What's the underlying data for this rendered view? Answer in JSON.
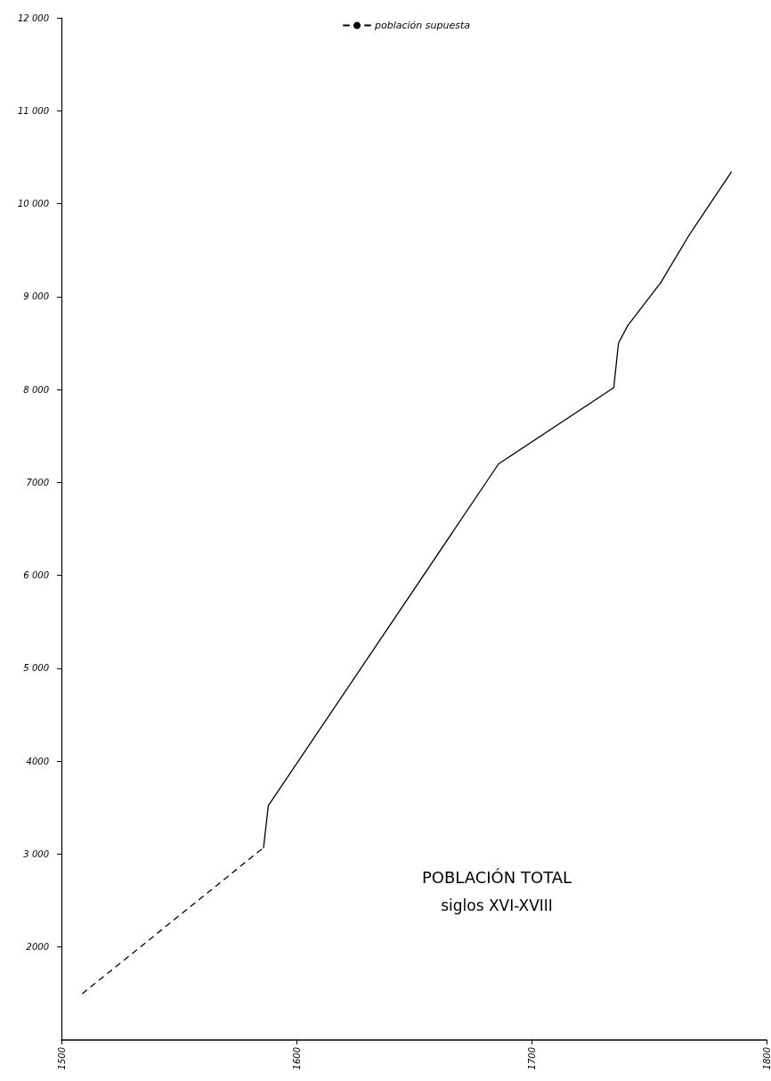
{
  "chart_data": {
    "type": "line",
    "title": "POBLACIÓN TOTAL",
    "subtitle": "siglos XVI-XVIII",
    "xlim": [
      1500,
      1800
    ],
    "xticks": [
      1500,
      1600,
      1700,
      1800
    ],
    "ylim": [
      1000,
      12000
    ],
    "yticks": [
      {
        "value": 2000,
        "label": "2000"
      },
      {
        "value": 3000,
        "label": "3 000"
      },
      {
        "value": 4000,
        "label": "4000"
      },
      {
        "value": 5000,
        "label": "5 000"
      },
      {
        "value": 6000,
        "label": "6 000"
      },
      {
        "value": 7000,
        "label": "7000"
      },
      {
        "value": 8000,
        "label": "8 000"
      },
      {
        "value": 9000,
        "label": "9 000"
      },
      {
        "value": 10000,
        "label": "10 000"
      },
      {
        "value": 11000,
        "label": "11 000"
      },
      {
        "value": 12000,
        "label": "12 000"
      }
    ],
    "grid": false,
    "legend": "top",
    "marker": "none",
    "series": [
      {
        "name": "población supuesta",
        "color": "#000000",
        "line_style": "dashed",
        "x": [
          1509,
          1586
        ],
        "values": [
          1500,
          3070
        ]
      },
      {
        "color": "#000000",
        "line_style": "solid",
        "x": [
          1586,
          1588,
          1686,
          1735,
          1737,
          1741,
          1755,
          1767,
          1785
        ],
        "values": [
          3070,
          3520,
          7200,
          8020,
          8500,
          8690,
          9150,
          9660,
          10340
        ]
      }
    ]
  }
}
